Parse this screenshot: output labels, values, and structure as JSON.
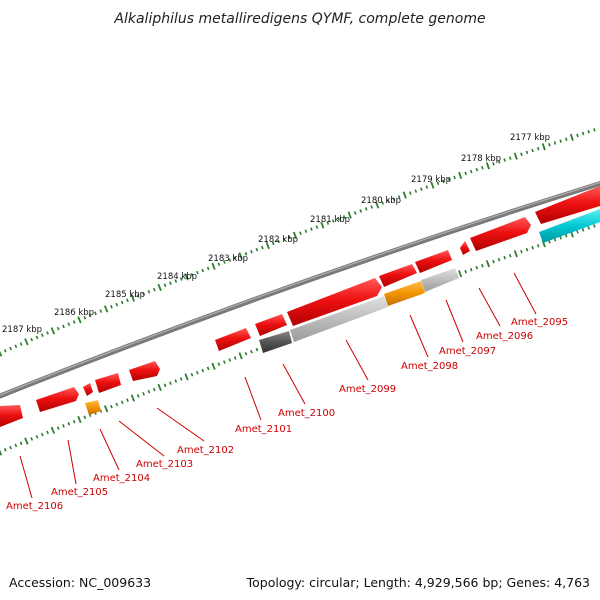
{
  "title": "Alkaliphilus metalliredigens QYMF, complete genome",
  "accession": "Accession: NC_009633",
  "topology": "Topology: circular; Length: 4,929,566 bp; Genes: 4,763",
  "colors": {
    "backbone": "#777777",
    "ticks": "#2e7d2e",
    "label": "#cc0000",
    "cds": "#ee1111",
    "gray": "#bdbdbd",
    "dark": "#555555",
    "orange": "#f29400",
    "cyan": "#00c8d2"
  },
  "kbp_ticks": [
    "2177 kbp",
    "2178 kbp",
    "2179 kbp",
    "2180 kbp",
    "2181 kbp",
    "2182 kbp",
    "2183 kbp",
    "2184 kbp",
    "2185 kbp",
    "2186 kbp",
    "2187 kbp"
  ],
  "genes": [
    {
      "label": "Amet_2095",
      "kind": "cds"
    },
    {
      "label": "Amet_2096",
      "kind": "cds"
    },
    {
      "label": "Amet_2097",
      "kind": "gray"
    },
    {
      "label": "Amet_2098",
      "kind": "orange"
    },
    {
      "label": "Amet_2099",
      "kind": "gray"
    },
    {
      "label": "Amet_2100",
      "kind": "dark"
    },
    {
      "label": "Amet_2101",
      "kind": "cds"
    },
    {
      "label": "Amet_2102",
      "kind": "cds"
    },
    {
      "label": "Amet_2103",
      "kind": "cds"
    },
    {
      "label": "Amet_2104",
      "kind": "orange"
    },
    {
      "label": "Amet_2105",
      "kind": "cds"
    },
    {
      "label": "Amet_2106",
      "kind": "cds"
    }
  ]
}
